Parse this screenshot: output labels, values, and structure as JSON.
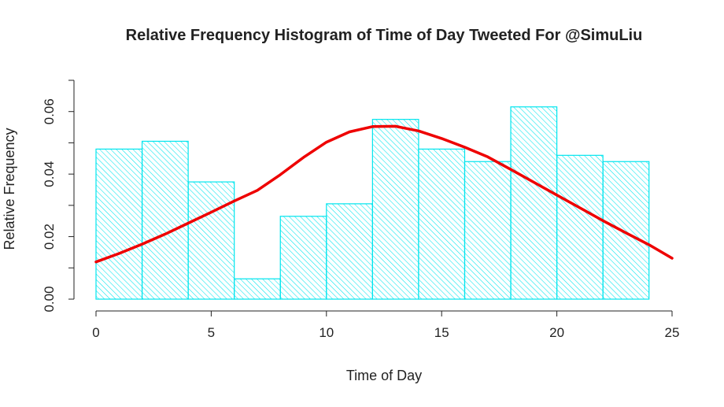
{
  "chart_data": {
    "type": "histogram",
    "title": "Relative Frequency Histogram of Time of Day Tweeted For @SimuLiu",
    "xlabel": "Time of Day",
    "ylabel": "Relative Frequency",
    "bin_edges": [
      0,
      2,
      4,
      6,
      8,
      10,
      12,
      14,
      16,
      18,
      20,
      22,
      24
    ],
    "values": [
      0.048,
      0.0505,
      0.0375,
      0.0065,
      0.0265,
      0.0305,
      0.0575,
      0.048,
      0.044,
      0.0615,
      0.046,
      0.044
    ],
    "curve": {
      "x": [
        0,
        1,
        2,
        3,
        4,
        5,
        6,
        7,
        8,
        9,
        10,
        11,
        12,
        13,
        14,
        15,
        16,
        17,
        18,
        19,
        20,
        21,
        22,
        23,
        24,
        25
      ],
      "y": [
        0.0119,
        0.0146,
        0.0176,
        0.0208,
        0.0243,
        0.0278,
        0.0314,
        0.0348,
        0.0398,
        0.0453,
        0.0502,
        0.0535,
        0.0552,
        0.0553,
        0.0538,
        0.0514,
        0.0486,
        0.0455,
        0.0415,
        0.0374,
        0.0333,
        0.0292,
        0.0251,
        0.0212,
        0.0174,
        0.0131
      ]
    },
    "xlim": [
      0,
      25
    ],
    "ylim": [
      0,
      0.07
    ],
    "x_ticks": [
      "0",
      "5",
      "10",
      "15",
      "20",
      "25"
    ],
    "y_ticks": [
      "0.00",
      "0.02",
      "0.04",
      "0.06"
    ],
    "colors": {
      "bars": "#00e5ee",
      "curve": "#ee0000",
      "axis": "#222222"
    },
    "grid": false,
    "legend": "none"
  }
}
